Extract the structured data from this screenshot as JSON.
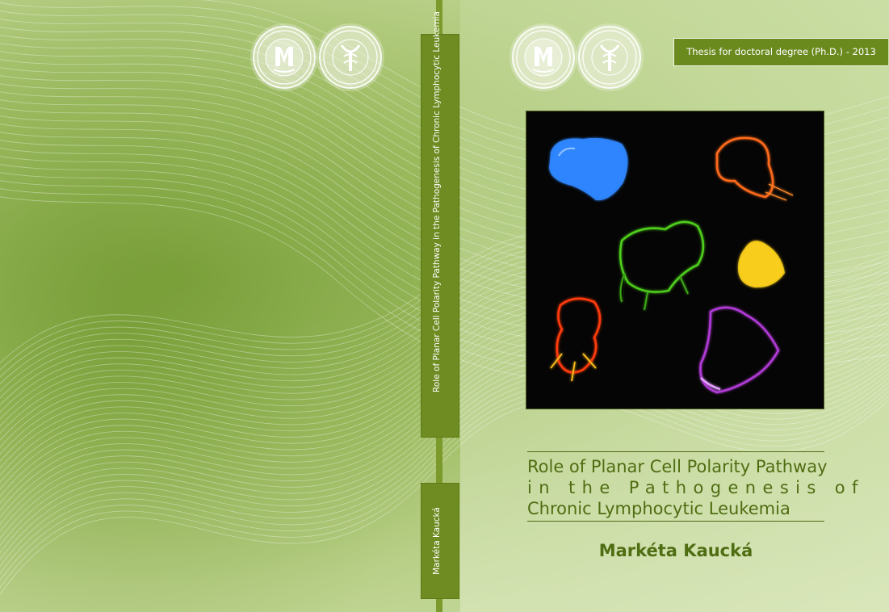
{
  "spine": {
    "title": "Role of Planar Cell Polarity Pathway in the Pathogenesis of Chronic Lymphocytic Leukemia",
    "author": "Markéta Kaucká"
  },
  "front": {
    "thesis_label": "Thesis for doctoral degree (Ph.D.) - 2013",
    "title_lines": [
      "Role of Planar Cell Polarity Pathway",
      "in the Pathogenesis of",
      "Chronic Lymphocytic Leukemia"
    ],
    "author": "Markéta Kaucká"
  },
  "logos": {
    "university_seal_text": "UNIVERSITAS MASARYKIANA BRUNENSIS",
    "university_monogram": "MU",
    "faculty_seal_text": "UNIVERSITAS MASARYKIANA BRUNENSIS FACULTAS RERUM NATURALIUM SCIENTIA EST POTENTIA"
  },
  "photo": {
    "cell_colors": [
      "#2f86ff",
      "#ff6a1a",
      "#4fd11f",
      "#ffd21a",
      "#ff3a10",
      "#b23ad8"
    ]
  },
  "colors": {
    "brand_green": "#6a8a1e",
    "title_green": "#4f6d12"
  }
}
